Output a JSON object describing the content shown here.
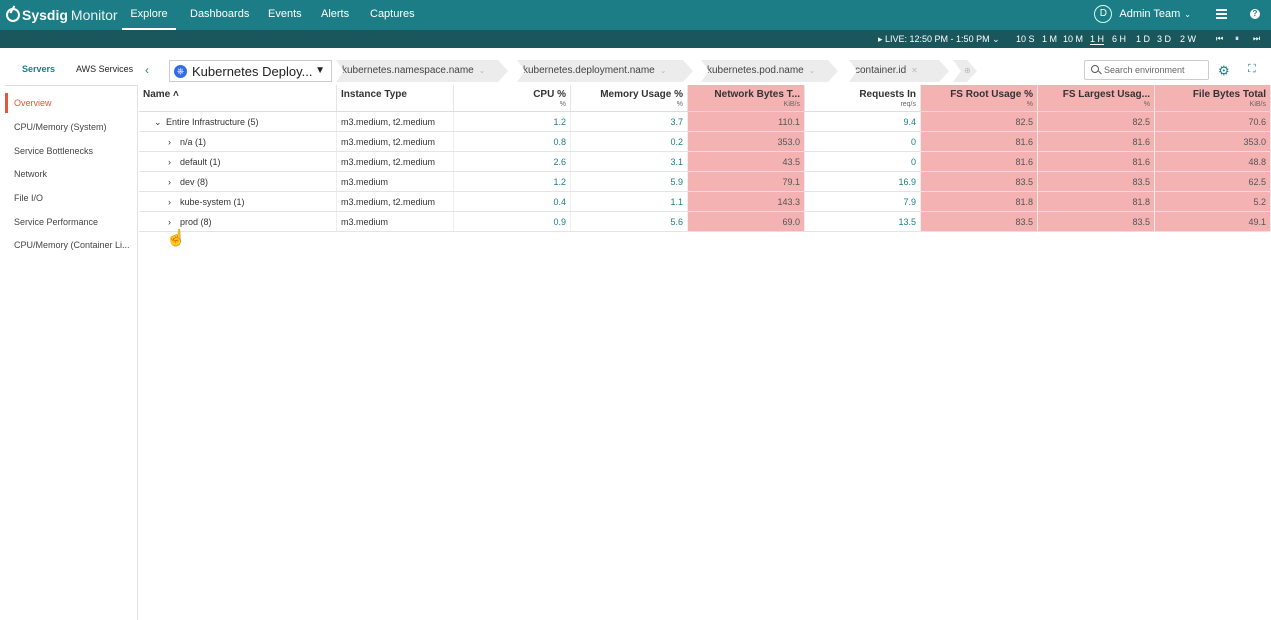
{
  "brand": {
    "bold": "Sysdig",
    "light": "Monitor"
  },
  "nav": {
    "tabs": [
      "Explore",
      "Dashboards",
      "Events",
      "Alerts",
      "Captures"
    ],
    "active": "Explore"
  },
  "team": {
    "avatar": "D",
    "name": "Admin Team"
  },
  "timebar": {
    "live": "▸ LIVE: 12:50 PM - 1:50 PM",
    "ranges": [
      "10 S",
      "1 M",
      "10 M",
      "1 H",
      "6 H",
      "1 D",
      "3 D",
      "2 W"
    ],
    "active_range": "1 H"
  },
  "side_tabs": [
    "Servers",
    "AWS Services"
  ],
  "sidebar": {
    "items": [
      "Overview",
      "CPU/Memory (System)",
      "Service Bottlenecks",
      "Network",
      "File I/O",
      "Service Performance",
      "CPU/Memory (Container Li..."
    ]
  },
  "breadcrumb": {
    "selector": "Kubernetes Deploy...",
    "crumbs": [
      "kubernetes.namespace.name",
      "kubernetes.deployment.name",
      "kubernetes.pod.name",
      "container.id"
    ]
  },
  "search": {
    "placeholder": "Search environment"
  },
  "table": {
    "headers": [
      {
        "label": "Name ˄",
        "unit": ""
      },
      {
        "label": "Instance Type",
        "unit": ""
      },
      {
        "label": "CPU %",
        "unit": "%"
      },
      {
        "label": "Memory Usage %",
        "unit": "%"
      },
      {
        "label": "Network Bytes T...",
        "unit": "KiB/s"
      },
      {
        "label": "Requests In",
        "unit": "req/s"
      },
      {
        "label": "FS Root Usage %",
        "unit": "%"
      },
      {
        "label": "FS Largest Usag...",
        "unit": "%"
      },
      {
        "label": "File Bytes Total",
        "unit": "KiB/s"
      }
    ],
    "rows": [
      {
        "name": "Entire Infrastructure (5)",
        "chevron": "⌄",
        "instance": "m3.medium, t2.medium",
        "cpu": "1.2",
        "mem": "3.7",
        "net": "110.1",
        "req": "9.4",
        "fsroot": "82.5",
        "fslargest": "82.5",
        "filebytes": "70.6"
      },
      {
        "name": "n/a (1)",
        "chevron": "›",
        "instance": "m3.medium, t2.medium",
        "cpu": "0.8",
        "mem": "0.2",
        "net": "353.0",
        "req": "0",
        "fsroot": "81.6",
        "fslargest": "81.6",
        "filebytes": "353.0"
      },
      {
        "name": "default (1)",
        "chevron": "›",
        "instance": "m3.medium, t2.medium",
        "cpu": "2.6",
        "mem": "3.1",
        "net": "43.5",
        "req": "0",
        "fsroot": "81.6",
        "fslargest": "81.6",
        "filebytes": "48.8"
      },
      {
        "name": "dev (8)",
        "chevron": "›",
        "instance": "m3.medium",
        "cpu": "1.2",
        "mem": "5.9",
        "net": "79.1",
        "req": "16.9",
        "fsroot": "83.5",
        "fslargest": "83.5",
        "filebytes": "62.5"
      },
      {
        "name": "kube-system (1)",
        "chevron": "›",
        "instance": "m3.medium, t2.medium",
        "cpu": "0.4",
        "mem": "1.1",
        "net": "143.3",
        "req": "7.9",
        "fsroot": "81.8",
        "fslargest": "81.8",
        "filebytes": "5.2"
      },
      {
        "name": "prod (8)",
        "chevron": "›",
        "instance": "m3.medium",
        "cpu": "0.9",
        "mem": "5.6",
        "net": "69.0",
        "req": "13.5",
        "fsroot": "83.5",
        "fslargest": "83.5",
        "filebytes": "49.1"
      }
    ]
  },
  "colors": {
    "topnav": "#1d7d86",
    "timebar": "#19575d",
    "hot_column": "#f5b2b2",
    "accent_red": "#e8553a"
  }
}
